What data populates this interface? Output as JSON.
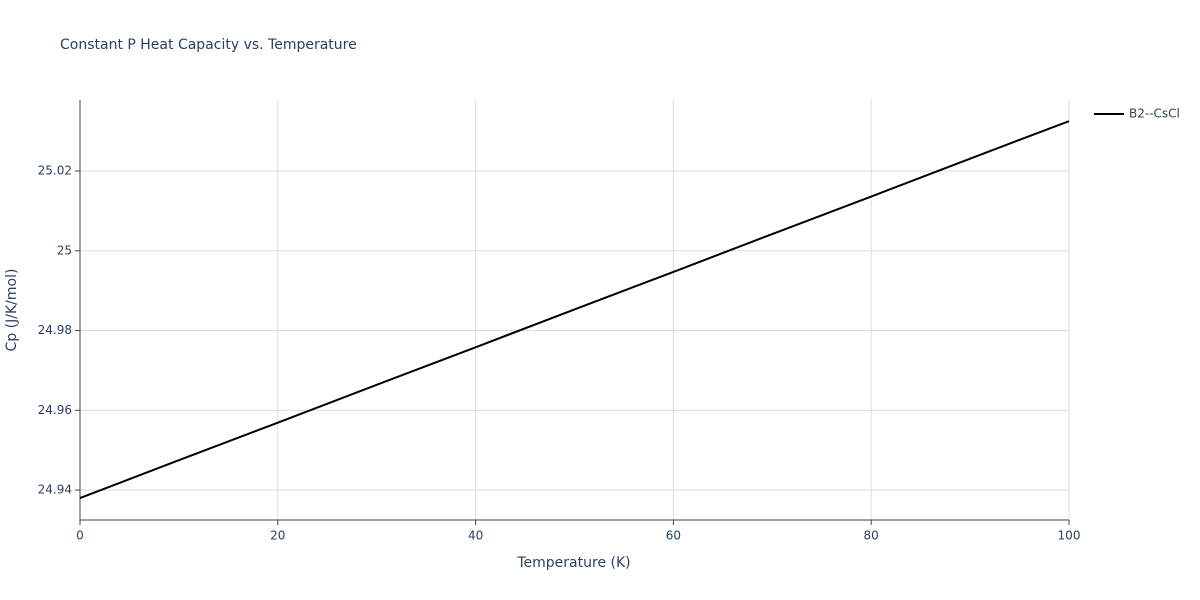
{
  "chart_data": {
    "type": "line",
    "title": "Constant P Heat Capacity vs. Temperature",
    "x_label": "Temperature (K)",
    "y_label": "Cp (J/K/mol)",
    "x": [
      0,
      10,
      20,
      30,
      40,
      50,
      60,
      70,
      80,
      90,
      100
    ],
    "series": [
      {
        "name": "B2--CsCl",
        "color": "#000000",
        "values": [
          24.938,
          24.9475,
          24.9569,
          24.9664,
          24.9758,
          24.9853,
          24.9947,
          25.0042,
          25.0136,
          25.0231,
          25.0325
        ]
      }
    ],
    "xlim": [
      0,
      100
    ],
    "xticks": [
      0,
      20,
      40,
      60,
      80,
      100
    ],
    "ylim": [
      24.9325,
      25.0378
    ],
    "yticks": [
      24.94,
      24.96,
      24.98,
      25,
      25.02
    ],
    "grid": true,
    "legend": "right"
  }
}
